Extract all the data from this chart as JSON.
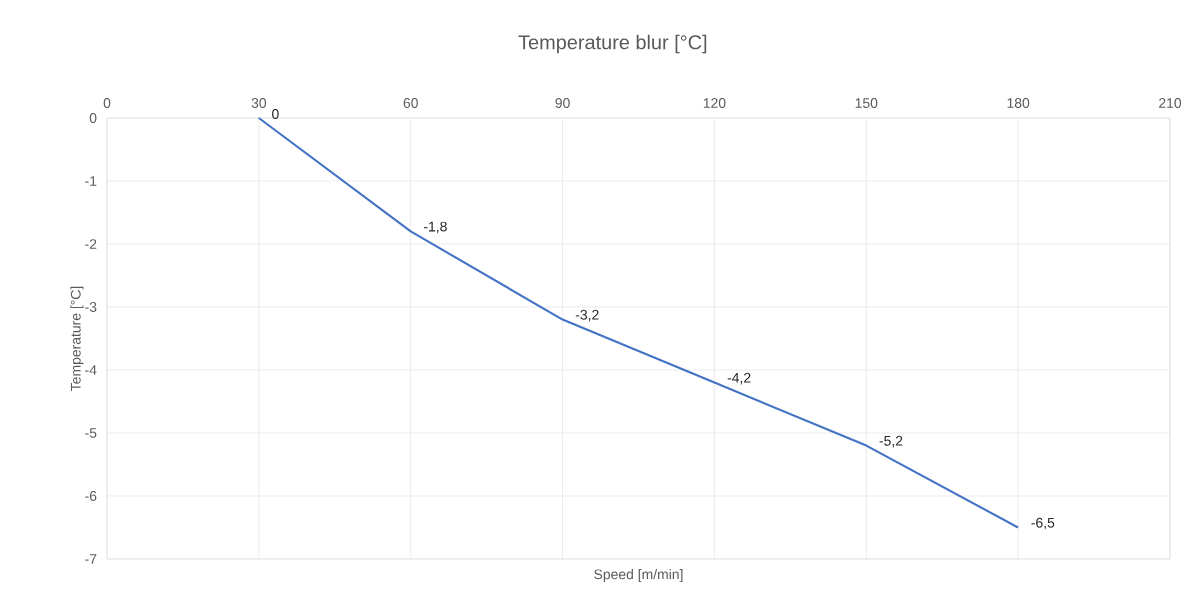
{
  "chart_data": {
    "type": "line",
    "title": "Temperature blur [°C]",
    "xlabel": "Speed [m/min]",
    "ylabel": "Temperature [°C]",
    "x": [
      30,
      60,
      90,
      120,
      150,
      180
    ],
    "values": [
      0,
      -1.8,
      -3.2,
      -4.2,
      -5.2,
      -6.5
    ],
    "value_labels": [
      "0",
      "-1,8",
      "-3,2",
      "-4,2",
      "-5,2",
      "-6,5"
    ],
    "color": "#4472c4",
    "xlim": [
      0,
      210
    ],
    "xticks": [
      0,
      30,
      60,
      90,
      120,
      150,
      180,
      210
    ],
    "ylim": [
      -7,
      0
    ],
    "yticks": [
      -7,
      -6,
      -5,
      -4,
      -3,
      -2,
      -1,
      0
    ],
    "grid": true,
    "marker": "none",
    "line_style": "solid"
  }
}
